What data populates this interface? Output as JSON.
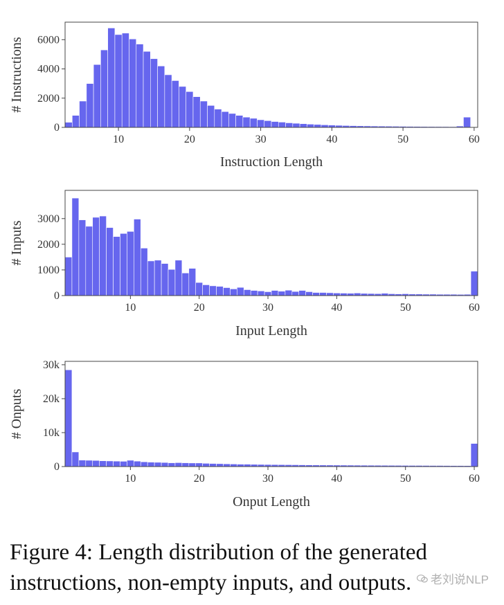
{
  "chart_data": [
    {
      "type": "bar",
      "title": "",
      "xlabel": "Instruction Length",
      "ylabel": "# Instructions",
      "xlim": [
        3,
        60
      ],
      "ylim": [
        0,
        7200
      ],
      "xticks": [
        10,
        20,
        30,
        40,
        50,
        60
      ],
      "yticks": [
        0,
        2000,
        4000,
        6000
      ],
      "ytick_labels": [
        "0",
        "2000",
        "4000",
        "6000"
      ],
      "x_start": 3,
      "values": [
        350,
        820,
        1800,
        3000,
        4300,
        5300,
        6800,
        6350,
        6450,
        6050,
        5700,
        5200,
        4700,
        4200,
        3600,
        3200,
        2800,
        2450,
        2100,
        1800,
        1500,
        1250,
        1080,
        950,
        820,
        700,
        620,
        520,
        460,
        400,
        360,
        310,
        280,
        250,
        220,
        200,
        175,
        155,
        140,
        125,
        115,
        105,
        98,
        92,
        86,
        80,
        75,
        70,
        66,
        62,
        58,
        55,
        52,
        50,
        48,
        90,
        700
      ]
    },
    {
      "type": "bar",
      "title": "",
      "xlabel": "Input Length",
      "ylabel": "# Inputs",
      "xlim": [
        1,
        60
      ],
      "ylim": [
        0,
        4100
      ],
      "xticks": [
        10,
        20,
        30,
        40,
        50,
        60
      ],
      "yticks": [
        0,
        1000,
        2000,
        3000
      ],
      "ytick_labels": [
        "0",
        "1000",
        "2000",
        "3000"
      ],
      "x_start": 1,
      "values": [
        1500,
        3800,
        2950,
        2700,
        3050,
        3100,
        2650,
        2300,
        2420,
        2500,
        2980,
        1850,
        1350,
        1380,
        1250,
        1020,
        1380,
        880,
        1060,
        510,
        420,
        380,
        360,
        310,
        260,
        320,
        230,
        200,
        180,
        150,
        200,
        170,
        210,
        160,
        200,
        150,
        120,
        120,
        110,
        100,
        95,
        90,
        100,
        85,
        80,
        75,
        90,
        70,
        65,
        70,
        60,
        60,
        55,
        55,
        50,
        50,
        50,
        45,
        50,
        950
      ]
    },
    {
      "type": "bar",
      "title": "",
      "xlabel": "Onput Length",
      "ylabel": "# Onputs",
      "xlim": [
        1,
        60
      ],
      "ylim": [
        0,
        31000
      ],
      "xticks": [
        10,
        20,
        30,
        40,
        50,
        60
      ],
      "yticks": [
        0,
        10000,
        20000,
        30000
      ],
      "ytick_labels": [
        "0",
        "10k",
        "20k",
        "30k"
      ],
      "x_start": 1,
      "values": [
        28500,
        4300,
        1900,
        1850,
        1800,
        1700,
        1650,
        1600,
        1550,
        1850,
        1600,
        1400,
        1300,
        1250,
        1200,
        1100,
        1150,
        1100,
        1050,
        1050,
        950,
        900,
        850,
        800,
        750,
        700,
        700,
        650,
        620,
        600,
        580,
        560,
        540,
        520,
        500,
        480,
        460,
        450,
        440,
        430,
        420,
        410,
        400,
        390,
        380,
        370,
        360,
        350,
        340,
        330,
        320,
        320,
        310,
        300,
        300,
        290,
        280,
        280,
        270,
        6800
      ]
    }
  ],
  "colors": {
    "bar_fill": "#6666ee",
    "bar_edge": "#ffffff",
    "axis": "#333333",
    "text": "#333333"
  },
  "caption": {
    "line1": "Figure 4: Length distribution of the generated",
    "line2": "instructions, non-empty inputs, and outputs."
  },
  "watermark": {
    "text": "老刘说NLP",
    "icon": "wechat-icon"
  }
}
